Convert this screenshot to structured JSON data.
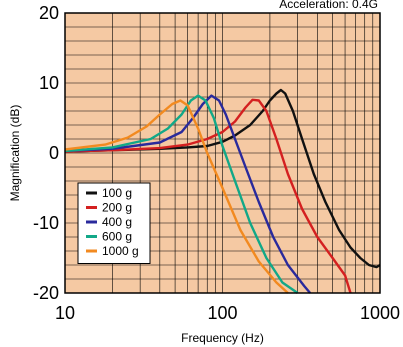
{
  "chart_data": {
    "type": "line",
    "annotation": "Acceleration: 0.4G",
    "xlabel": "Frequency (Hz)",
    "ylabel": "Magnification (dB)",
    "x_scale": "log",
    "xlim": [
      10,
      1000
    ],
    "ylim": [
      -20,
      20
    ],
    "x_ticks": [
      10,
      100,
      1000
    ],
    "x_tick_labels": [
      "10",
      "100",
      "1000"
    ],
    "y_ticks": [
      -20,
      -10,
      0,
      10,
      20
    ],
    "y_tick_labels": [
      "-20",
      "-10",
      "0",
      "10",
      "20"
    ],
    "grid": true,
    "plot_background": "#f5c9a3",
    "legend_position": "bottom-left",
    "series": [
      {
        "name": "100 g",
        "color": "#111111",
        "points": [
          [
            10,
            0.2
          ],
          [
            20,
            0.4
          ],
          [
            40,
            0.6
          ],
          [
            60,
            0.8
          ],
          [
            80,
            1
          ],
          [
            100,
            1.6
          ],
          [
            120,
            2.5
          ],
          [
            150,
            4
          ],
          [
            180,
            6
          ],
          [
            200,
            7.5
          ],
          [
            220,
            8.5
          ],
          [
            235,
            9
          ],
          [
            250,
            8.5
          ],
          [
            280,
            6
          ],
          [
            320,
            2
          ],
          [
            380,
            -3
          ],
          [
            450,
            -7
          ],
          [
            550,
            -11
          ],
          [
            650,
            -13.5
          ],
          [
            750,
            -15
          ],
          [
            850,
            -16
          ],
          [
            950,
            -16.3
          ],
          [
            1000,
            -16
          ]
        ]
      },
      {
        "name": "200 g",
        "color": "#d42020",
        "points": [
          [
            10,
            0.2
          ],
          [
            20,
            0.4
          ],
          [
            40,
            0.7
          ],
          [
            60,
            1.2
          ],
          [
            80,
            2
          ],
          [
            100,
            3
          ],
          [
            120,
            4.5
          ],
          [
            140,
            6.5
          ],
          [
            155,
            7.6
          ],
          [
            170,
            7.5
          ],
          [
            190,
            6
          ],
          [
            220,
            2
          ],
          [
            260,
            -3
          ],
          [
            320,
            -8
          ],
          [
            400,
            -12
          ],
          [
            500,
            -15
          ],
          [
            600,
            -17.5
          ],
          [
            650,
            -20
          ]
        ]
      },
      {
        "name": "400 g",
        "color": "#2a2a9c",
        "points": [
          [
            10,
            0.3
          ],
          [
            20,
            0.6
          ],
          [
            40,
            1.5
          ],
          [
            55,
            3
          ],
          [
            65,
            5
          ],
          [
            75,
            7
          ],
          [
            85,
            8.2
          ],
          [
            95,
            7.5
          ],
          [
            105,
            5.5
          ],
          [
            120,
            2
          ],
          [
            140,
            -2
          ],
          [
            170,
            -7
          ],
          [
            210,
            -12
          ],
          [
            260,
            -16
          ],
          [
            330,
            -19
          ],
          [
            360,
            -20
          ]
        ]
      },
      {
        "name": "600 g",
        "color": "#12a888",
        "points": [
          [
            10,
            0.3
          ],
          [
            20,
            0.8
          ],
          [
            35,
            2
          ],
          [
            45,
            3.5
          ],
          [
            55,
            5.5
          ],
          [
            63,
            7.5
          ],
          [
            70,
            8.2
          ],
          [
            78,
            7.5
          ],
          [
            88,
            5
          ],
          [
            100,
            1
          ],
          [
            120,
            -4
          ],
          [
            150,
            -10
          ],
          [
            190,
            -15
          ],
          [
            240,
            -18.5
          ],
          [
            300,
            -20
          ]
        ]
      },
      {
        "name": "1000 g",
        "color": "#f28a20",
        "points": [
          [
            10,
            0.5
          ],
          [
            18,
            1.2
          ],
          [
            25,
            2.2
          ],
          [
            33,
            3.8
          ],
          [
            40,
            5.5
          ],
          [
            48,
            7
          ],
          [
            54,
            7.5
          ],
          [
            60,
            6.8
          ],
          [
            70,
            3.5
          ],
          [
            80,
            0
          ],
          [
            100,
            -5
          ],
          [
            130,
            -11
          ],
          [
            170,
            -15.5
          ],
          [
            220,
            -18.5
          ],
          [
            260,
            -20
          ]
        ]
      }
    ]
  }
}
